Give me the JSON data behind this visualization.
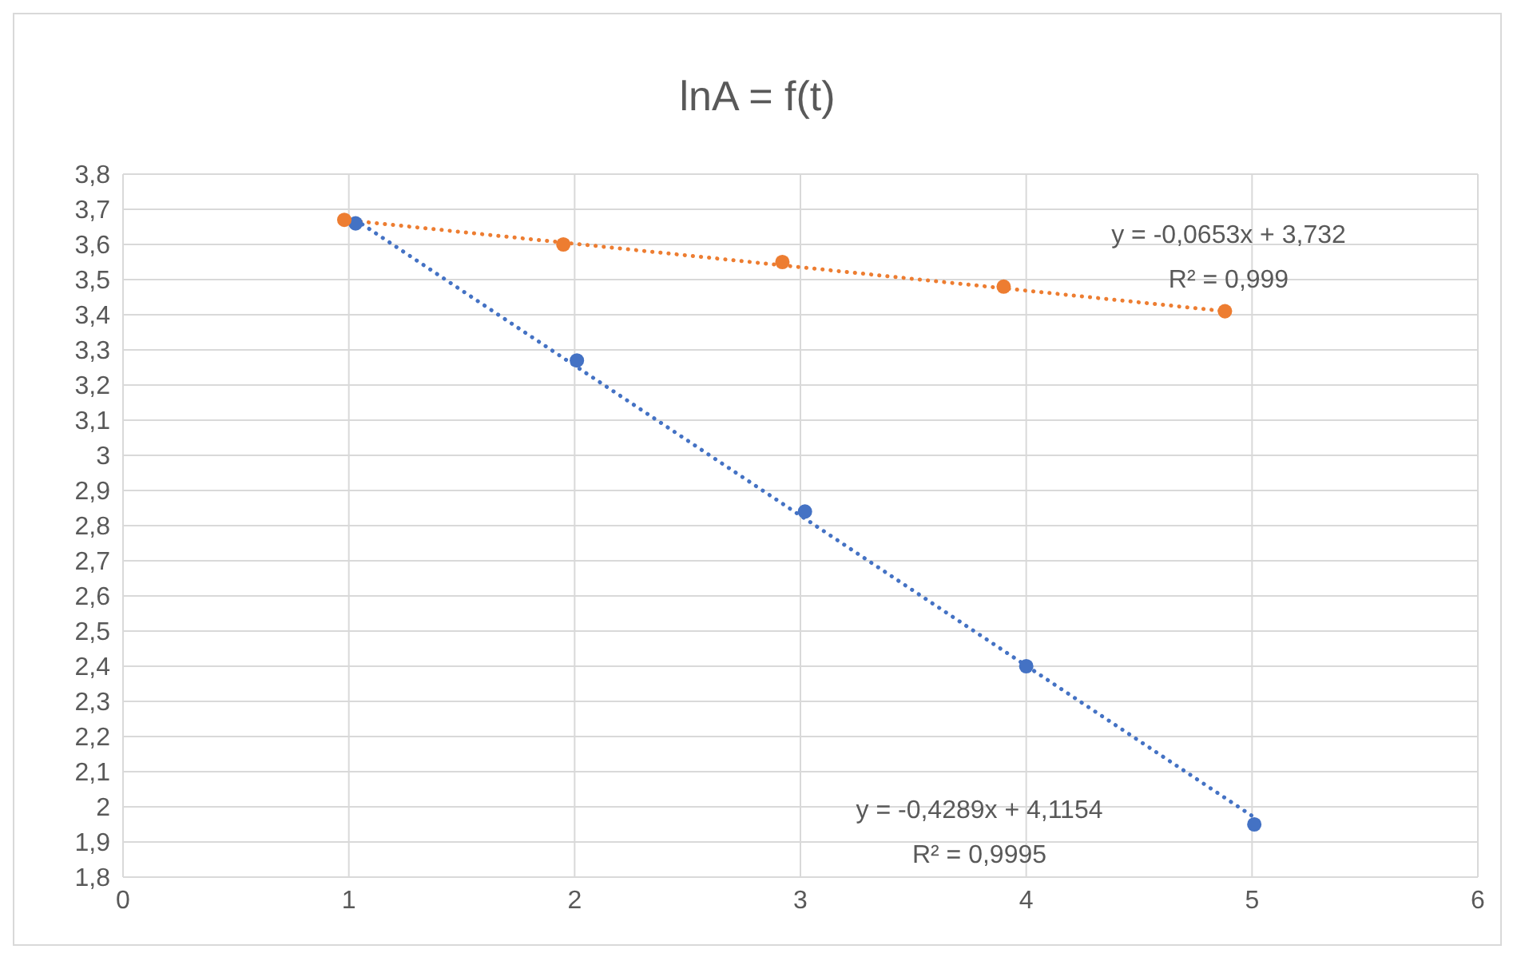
{
  "chart_data": {
    "type": "scatter",
    "title": "lnA = f(t)",
    "xlim": [
      0,
      6
    ],
    "xticks": [
      0,
      1,
      2,
      3,
      4,
      5,
      6
    ],
    "ylim": [
      1.8,
      3.8
    ],
    "yticks": [
      {
        "value": 1.8,
        "label": "1,8"
      },
      {
        "value": 1.9,
        "label": "1,9"
      },
      {
        "value": 2,
        "label": "2"
      },
      {
        "value": 2.1,
        "label": "2,1"
      },
      {
        "value": 2.2,
        "label": "2,2"
      },
      {
        "value": 2.3,
        "label": "2,3"
      },
      {
        "value": 2.4,
        "label": "2,4"
      },
      {
        "value": 2.5,
        "label": "2,5"
      },
      {
        "value": 2.6,
        "label": "2,6"
      },
      {
        "value": 2.7,
        "label": "2,7"
      },
      {
        "value": 2.8,
        "label": "2,8"
      },
      {
        "value": 2.9,
        "label": "2,9"
      },
      {
        "value": 3,
        "label": "3"
      },
      {
        "value": 3.1,
        "label": "3,1"
      },
      {
        "value": 3.2,
        "label": "3,2"
      },
      {
        "value": 3.3,
        "label": "3,3"
      },
      {
        "value": 3.4,
        "label": "3,4"
      },
      {
        "value": 3.5,
        "label": "3,5"
      },
      {
        "value": 3.6,
        "label": "3,6"
      },
      {
        "value": 3.7,
        "label": "3,7"
      },
      {
        "value": 3.8,
        "label": "3,8"
      }
    ],
    "grid": true,
    "marker": "circle",
    "series": [
      {
        "type": "line",
        "color": "#4472c4",
        "x": [
          1.03,
          5.01
        ],
        "values": [
          3.67,
          1.97
        ],
        "line_style": "dotted",
        "marker": "none"
      },
      {
        "type": "line",
        "color": "#ed7d31",
        "x": [
          0.98,
          4.88
        ],
        "values": [
          3.67,
          3.41
        ],
        "line_style": "dotted",
        "marker": "none"
      },
      {
        "color": "#4472c4",
        "x": [
          1.03,
          2.01,
          3.02,
          4.0,
          5.01
        ],
        "values": [
          3.66,
          3.27,
          2.84,
          2.4,
          1.95
        ]
      },
      {
        "color": "#ed7d31",
        "x": [
          0.98,
          1.95,
          2.92,
          3.9,
          4.88
        ],
        "values": [
          3.67,
          3.6,
          3.55,
          3.48,
          3.41
        ]
      }
    ],
    "annotations": [
      "y = -0,0653x + 3,732",
      "R² = 0,999",
      "y = -0,4289x + 4,1154",
      "R² = 0,9995"
    ]
  }
}
